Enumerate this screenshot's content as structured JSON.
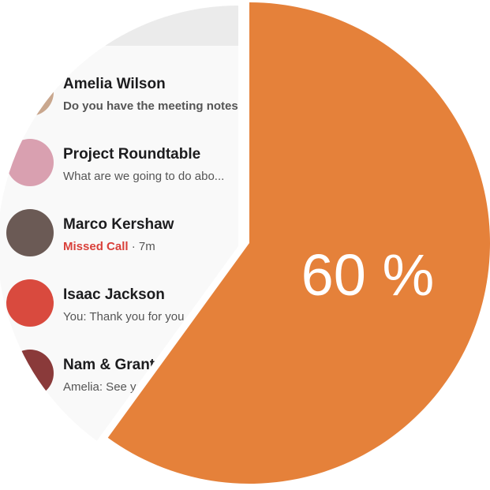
{
  "chart_data": {
    "type": "pie",
    "values": [
      60
    ],
    "value_labels": [
      "60 %"
    ],
    "color": "#e5813a"
  },
  "screenshot": {
    "conversations": [
      {
        "name": "Amelia Wilson",
        "preview": "Do you have the meeting notes"
      },
      {
        "name": "Project Roundtable",
        "preview": "What are we going to do abo..."
      },
      {
        "name": "Marco Kershaw",
        "preview": "Missed Call",
        "time": "7m"
      },
      {
        "name": "Isaac Jackson",
        "preview": "You: Thank you for you"
      },
      {
        "name": "Nam & Grant",
        "preview": "Amelia: See yo"
      }
    ]
  }
}
